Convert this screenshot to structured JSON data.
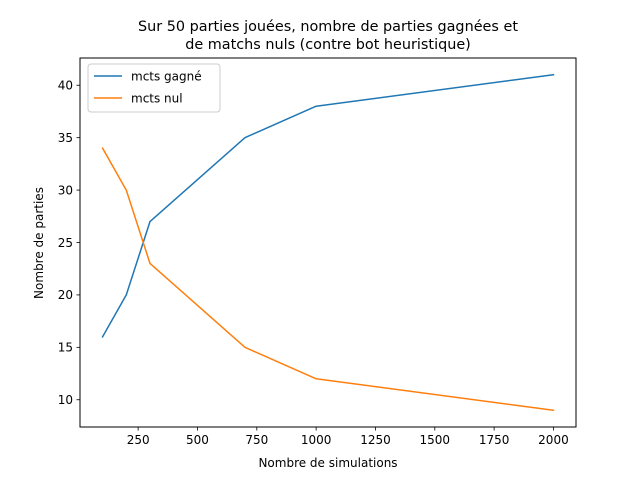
{
  "chart_data": {
    "type": "line",
    "title_lines": [
      "Sur 50 parties jouées, nombre de parties gagnées et",
      "de matchs nuls (contre bot heuristique)"
    ],
    "xlabel": "Nombre de simulations",
    "ylabel": "Nombre de parties",
    "xlim": [
      5,
      2095
    ],
    "ylim": [
      7.4,
      42.6
    ],
    "x_ticks": [
      250,
      500,
      750,
      1000,
      1250,
      1500,
      1750,
      2000
    ],
    "y_ticks": [
      10,
      15,
      20,
      25,
      30,
      35,
      40
    ],
    "grid": false,
    "legend_position": "top-left",
    "series": [
      {
        "name": "mcts gagné",
        "color": "#1f77b4",
        "x": [
          100,
          200,
          300,
          700,
          1000,
          2000
        ],
        "y": [
          16,
          20,
          27,
          35,
          38,
          41
        ]
      },
      {
        "name": "mcts nul",
        "color": "#ff7f0e",
        "x": [
          100,
          200,
          300,
          700,
          1000,
          2000
        ],
        "y": [
          34,
          30,
          23,
          15,
          12,
          9
        ]
      }
    ]
  }
}
